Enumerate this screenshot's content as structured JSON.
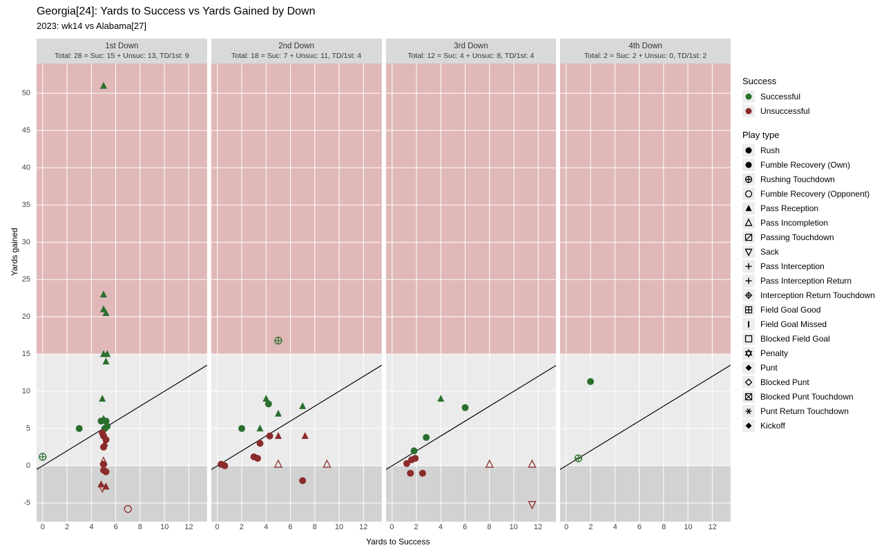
{
  "title": "Georgia[24]: Yards to Success vs Yards Gained by Down",
  "subtitle": "2023: wk14 vs Alabama[27]",
  "axis": {
    "x_label": "Yards to Success",
    "y_label": "Yards gained",
    "xlim": [
      -0.5,
      13.5
    ],
    "ylim": [
      -7.5,
      54
    ],
    "x_ticks": [
      0,
      2,
      4,
      6,
      8,
      10,
      12
    ],
    "y_ticks": [
      -5,
      0,
      5,
      10,
      15,
      20,
      25,
      30,
      35,
      40,
      45,
      50
    ]
  },
  "colors": {
    "successful": "#2b6f2e",
    "unsuccessful": "#8b2b2b",
    "panel_bg": "#ebebeb",
    "grid_major": "#ffffff",
    "strip_bg": "#d9d9d9",
    "band_red": "#dca7a7",
    "band_gray": "#cfcfcf",
    "line": "#000000"
  },
  "bands": {
    "red": {
      "ymin": 15,
      "ymax": 54
    },
    "gray": {
      "ymin": -7.5,
      "ymax": 0
    }
  },
  "diag_line": {
    "slope": 1,
    "intercept": 0
  },
  "legend_success": {
    "title": "Success",
    "items": [
      {
        "label": "Successful",
        "color": "#2b6f2e"
      },
      {
        "label": "Unsuccessful",
        "color": "#8b2b2b"
      }
    ]
  },
  "legend_playtype": {
    "title": "Play type",
    "items": [
      {
        "label": "Rush",
        "shape": "circle_filled"
      },
      {
        "label": "Fumble Recovery (Own)",
        "shape": "circle_filled"
      },
      {
        "label": "Rushing Touchdown",
        "shape": "circle_plus"
      },
      {
        "label": "Fumble Recovery (Opponent)",
        "shape": "circle_open"
      },
      {
        "label": "Pass Reception",
        "shape": "triangle_filled"
      },
      {
        "label": "Pass Incompletion",
        "shape": "triangle_open"
      },
      {
        "label": "Passing Touchdown",
        "shape": "box_slash"
      },
      {
        "label": "Sack",
        "shape": "triangle_down_open"
      },
      {
        "label": "Pass Interception",
        "shape": "plus"
      },
      {
        "label": "Pass Interception Return",
        "shape": "plus"
      },
      {
        "label": "Interception Return Touchdown",
        "shape": "diamond_plus"
      },
      {
        "label": "Field Goal Good",
        "shape": "box_plus"
      },
      {
        "label": "Field Goal Missed",
        "shape": "bar_vert"
      },
      {
        "label": "Blocked Field Goal",
        "shape": "square_open"
      },
      {
        "label": "Penalty",
        "shape": "star_david"
      },
      {
        "label": "Punt",
        "shape": "diamond_filled"
      },
      {
        "label": "Blocked Punt",
        "shape": "diamond_open"
      },
      {
        "label": "Blocked Punt Touchdown",
        "shape": "box_x"
      },
      {
        "label": "Punt Return Touchdown",
        "shape": "asterisk"
      },
      {
        "label": "Kickoff",
        "shape": "diamond_filled"
      }
    ]
  },
  "facets": [
    {
      "title": "1st Down",
      "sub": "Total: 28 = Suc: 15 + Unsuc: 13, TD/1st: 9",
      "points": [
        {
          "x": 5,
          "y": 51,
          "success": true,
          "shape": "triangle_filled"
        },
        {
          "x": 5,
          "y": 23,
          "success": true,
          "shape": "triangle_filled"
        },
        {
          "x": 5,
          "y": 21,
          "success": true,
          "shape": "triangle_filled"
        },
        {
          "x": 5.2,
          "y": 20.5,
          "success": true,
          "shape": "triangle_filled"
        },
        {
          "x": 5,
          "y": 15,
          "success": true,
          "shape": "triangle_filled"
        },
        {
          "x": 5.3,
          "y": 15,
          "success": true,
          "shape": "triangle_filled"
        },
        {
          "x": 5.2,
          "y": 14,
          "success": true,
          "shape": "triangle_filled"
        },
        {
          "x": 4.9,
          "y": 9,
          "success": true,
          "shape": "triangle_filled"
        },
        {
          "x": 5,
          "y": 6.3,
          "success": true,
          "shape": "triangle_filled"
        },
        {
          "x": 4.8,
          "y": 6,
          "success": true,
          "shape": "circle_filled"
        },
        {
          "x": 5.1,
          "y": 5,
          "success": true,
          "shape": "circle_filled"
        },
        {
          "x": 3,
          "y": 5,
          "success": true,
          "shape": "circle_filled"
        },
        {
          "x": 0,
          "y": 1.2,
          "success": true,
          "shape": "circle_plus"
        },
        {
          "x": 5.2,
          "y": 6,
          "success": true,
          "shape": "circle_filled"
        },
        {
          "x": 5.3,
          "y": 5.3,
          "success": true,
          "shape": "circle_filled"
        },
        {
          "x": 5,
          "y": 4,
          "success": false,
          "shape": "circle_filled"
        },
        {
          "x": 5.2,
          "y": 3.5,
          "success": false,
          "shape": "circle_filled"
        },
        {
          "x": 5.1,
          "y": 3,
          "success": false,
          "shape": "triangle_filled"
        },
        {
          "x": 5,
          "y": 2.5,
          "success": false,
          "shape": "circle_filled"
        },
        {
          "x": 5,
          "y": 0.6,
          "success": false,
          "shape": "triangle_open"
        },
        {
          "x": 5,
          "y": -0.6,
          "success": false,
          "shape": "circle_filled"
        },
        {
          "x": 5.2,
          "y": -0.8,
          "success": false,
          "shape": "circle_filled"
        },
        {
          "x": 4.8,
          "y": -2.5,
          "success": false,
          "shape": "triangle_filled"
        },
        {
          "x": 5.2,
          "y": -2.8,
          "success": false,
          "shape": "triangle_filled"
        },
        {
          "x": 4.9,
          "y": -3,
          "success": false,
          "shape": "triangle_down_open"
        },
        {
          "x": 5,
          "y": 0.2,
          "success": false,
          "shape": "circle_filled"
        },
        {
          "x": 4.9,
          "y": 4.4,
          "success": false,
          "shape": "circle_filled"
        },
        {
          "x": 7,
          "y": -5.8,
          "success": false,
          "shape": "circle_open"
        }
      ]
    },
    {
      "title": "2nd Down",
      "sub": "Total: 18 = Suc: 7 + Unsuc: 11, TD/1st: 4",
      "points": [
        {
          "x": 5,
          "y": 16.8,
          "success": true,
          "shape": "circle_plus"
        },
        {
          "x": 4,
          "y": 9,
          "success": true,
          "shape": "triangle_filled"
        },
        {
          "x": 4.2,
          "y": 8.3,
          "success": true,
          "shape": "circle_filled"
        },
        {
          "x": 7,
          "y": 8,
          "success": true,
          "shape": "triangle_filled"
        },
        {
          "x": 5,
          "y": 7,
          "success": true,
          "shape": "triangle_filled"
        },
        {
          "x": 2,
          "y": 5,
          "success": true,
          "shape": "circle_filled"
        },
        {
          "x": 3.5,
          "y": 5,
          "success": true,
          "shape": "triangle_filled"
        },
        {
          "x": 5,
          "y": 4,
          "success": false,
          "shape": "triangle_filled"
        },
        {
          "x": 7.2,
          "y": 4,
          "success": false,
          "shape": "triangle_filled"
        },
        {
          "x": 3.5,
          "y": 3,
          "success": false,
          "shape": "circle_filled"
        },
        {
          "x": 4.3,
          "y": 4,
          "success": false,
          "shape": "circle_filled"
        },
        {
          "x": 3,
          "y": 1.2,
          "success": false,
          "shape": "circle_filled"
        },
        {
          "x": 3.3,
          "y": 1,
          "success": false,
          "shape": "circle_filled"
        },
        {
          "x": 0.3,
          "y": 0.2,
          "success": false,
          "shape": "circle_filled"
        },
        {
          "x": 0.6,
          "y": 0,
          "success": false,
          "shape": "circle_filled"
        },
        {
          "x": 5,
          "y": 0.2,
          "success": false,
          "shape": "triangle_open"
        },
        {
          "x": 9,
          "y": 0.2,
          "success": false,
          "shape": "triangle_open"
        },
        {
          "x": 7,
          "y": -2,
          "success": false,
          "shape": "circle_filled"
        }
      ]
    },
    {
      "title": "3rd Down",
      "sub": "Total: 12 = Suc: 4 + Unsuc: 8, TD/1st: 4",
      "points": [
        {
          "x": 4,
          "y": 9,
          "success": true,
          "shape": "triangle_filled"
        },
        {
          "x": 6,
          "y": 7.8,
          "success": true,
          "shape": "circle_filled"
        },
        {
          "x": 2.8,
          "y": 3.8,
          "success": true,
          "shape": "circle_filled"
        },
        {
          "x": 1.8,
          "y": 2,
          "success": true,
          "shape": "circle_filled"
        },
        {
          "x": 1.6,
          "y": 0.8,
          "success": false,
          "shape": "circle_filled"
        },
        {
          "x": 1.9,
          "y": 1,
          "success": false,
          "shape": "circle_filled"
        },
        {
          "x": 1.5,
          "y": -1,
          "success": false,
          "shape": "circle_filled"
        },
        {
          "x": 2.5,
          "y": -1,
          "success": false,
          "shape": "circle_filled"
        },
        {
          "x": 1.2,
          "y": 0.3,
          "success": false,
          "shape": "circle_filled"
        },
        {
          "x": 8,
          "y": 0.2,
          "success": false,
          "shape": "triangle_open"
        },
        {
          "x": 11.5,
          "y": 0.2,
          "success": false,
          "shape": "triangle_open"
        },
        {
          "x": 11.5,
          "y": -5.2,
          "success": false,
          "shape": "triangle_down_open"
        }
      ]
    },
    {
      "title": "4th Down",
      "sub": "Total: 2 = Suc: 2 + Unsuc: 0, TD/1st: 2",
      "points": [
        {
          "x": 2,
          "y": 11.3,
          "success": true,
          "shape": "circle_filled"
        },
        {
          "x": 1,
          "y": 1,
          "success": true,
          "shape": "circle_plus"
        }
      ]
    }
  ]
}
